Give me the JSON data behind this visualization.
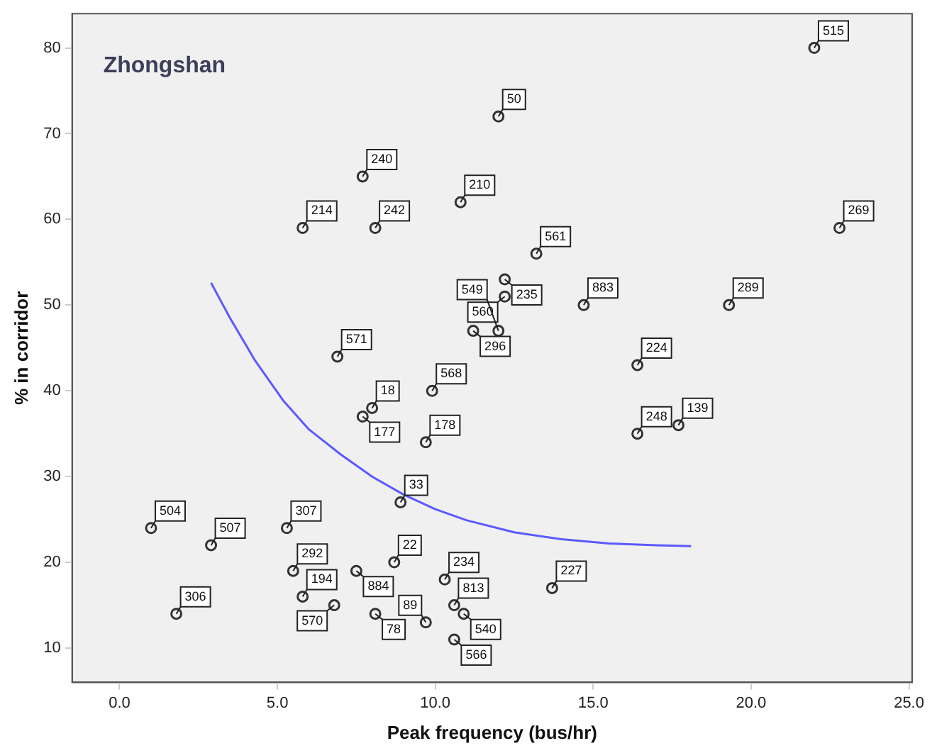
{
  "chart_data": {
    "type": "scatter",
    "title": "Zhongshan",
    "xlabel": "Peak frequency (bus/hr)",
    "ylabel": "% in corridor",
    "xlim": [
      -1.5,
      25.1
    ],
    "ylim": [
      6,
      84
    ],
    "xticks": [
      {
        "value": 0,
        "label": "0.0"
      },
      {
        "value": 5,
        "label": "5.0"
      },
      {
        "value": 10,
        "label": "10.0"
      },
      {
        "value": 15,
        "label": "15.0"
      },
      {
        "value": 20,
        "label": "20.0"
      },
      {
        "value": 25,
        "label": "25.0"
      }
    ],
    "yticks": [
      10,
      20,
      30,
      40,
      50,
      60,
      70,
      80
    ],
    "grid": false,
    "legend": false,
    "marker": "circle",
    "series": [
      {
        "color": "#333333",
        "x": [
          22.0,
          12.0,
          7.7,
          10.8,
          5.8,
          8.1,
          12.2,
          12.2,
          11.2,
          12.0,
          6.9,
          13.2,
          14.7,
          19.3,
          22.8,
          16.4,
          9.9,
          8.0,
          7.7,
          9.7,
          8.9,
          1.0,
          2.9,
          5.3,
          5.5,
          8.7,
          5.8,
          7.5,
          6.8,
          8.1,
          10.3,
          10.6,
          10.9,
          9.7,
          10.6,
          1.8,
          17.7,
          16.4,
          13.7
        ],
        "values": [
          80,
          72,
          65,
          62,
          59,
          59,
          53,
          51,
          47,
          47,
          44,
          56,
          50,
          50,
          59,
          43,
          40,
          38,
          37,
          34,
          27,
          24,
          22,
          24,
          19,
          20,
          16,
          19,
          15,
          14,
          18,
          15,
          14,
          13,
          11,
          14,
          36,
          35,
          17
        ]
      },
      {
        "type": "line",
        "color": "#5a5aff",
        "line_style": "solid",
        "marker": "none",
        "x": [
          2.9,
          3.5,
          4.3,
          5.2,
          6.0,
          7.0,
          8.0,
          9.0,
          10.0,
          11.0,
          12.5,
          14.0,
          15.5,
          17.0,
          18.1
        ],
        "values": [
          52.6,
          48.5,
          43.5,
          38.8,
          35.5,
          32.6,
          30.0,
          27.9,
          26.2,
          24.9,
          23.5,
          22.7,
          22.2,
          22.0,
          21.9
        ]
      }
    ],
    "annotations": [
      {
        "text": "515",
        "x": 22.0,
        "y": 80
      },
      {
        "text": "50",
        "x": 12.0,
        "y": 72
      },
      {
        "text": "240",
        "x": 7.7,
        "y": 65
      },
      {
        "text": "210",
        "x": 10.8,
        "y": 62
      },
      {
        "text": "214",
        "x": 5.8,
        "y": 59
      },
      {
        "text": "242",
        "x": 8.1,
        "y": 59
      },
      {
        "text": "235",
        "x": 12.2,
        "y": 53
      },
      {
        "text": "560",
        "x": 12.2,
        "y": 51
      },
      {
        "text": "296",
        "x": 11.2,
        "y": 47
      },
      {
        "text": "549",
        "x": 12.0,
        "y": 47
      },
      {
        "text": "571",
        "x": 6.9,
        "y": 44
      },
      {
        "text": "561",
        "x": 13.2,
        "y": 56
      },
      {
        "text": "883",
        "x": 14.7,
        "y": 50
      },
      {
        "text": "289",
        "x": 19.3,
        "y": 50
      },
      {
        "text": "269",
        "x": 22.8,
        "y": 59
      },
      {
        "text": "224",
        "x": 16.4,
        "y": 43
      },
      {
        "text": "568",
        "x": 9.9,
        "y": 40
      },
      {
        "text": "18",
        "x": 8.0,
        "y": 38
      },
      {
        "text": "177",
        "x": 7.7,
        "y": 37
      },
      {
        "text": "178",
        "x": 9.7,
        "y": 34
      },
      {
        "text": "33",
        "x": 8.9,
        "y": 27
      },
      {
        "text": "504",
        "x": 1.0,
        "y": 24
      },
      {
        "text": "507",
        "x": 2.9,
        "y": 22
      },
      {
        "text": "307",
        "x": 5.3,
        "y": 24
      },
      {
        "text": "292",
        "x": 5.5,
        "y": 19
      },
      {
        "text": "22",
        "x": 8.7,
        "y": 20
      },
      {
        "text": "194",
        "x": 5.8,
        "y": 16
      },
      {
        "text": "884",
        "x": 7.5,
        "y": 19
      },
      {
        "text": "570",
        "x": 6.8,
        "y": 15
      },
      {
        "text": "78",
        "x": 8.1,
        "y": 14
      },
      {
        "text": "234",
        "x": 10.3,
        "y": 18
      },
      {
        "text": "813",
        "x": 10.6,
        "y": 15
      },
      {
        "text": "540",
        "x": 10.9,
        "y": 14
      },
      {
        "text": "89",
        "x": 9.7,
        "y": 13
      },
      {
        "text": "566",
        "x": 10.6,
        "y": 11
      },
      {
        "text": "306",
        "x": 1.8,
        "y": 14
      },
      {
        "text": "139",
        "x": 17.7,
        "y": 36
      },
      {
        "text": "248",
        "x": 16.4,
        "y": 35
      },
      {
        "text": "227",
        "x": 13.7,
        "y": 17
      }
    ]
  }
}
